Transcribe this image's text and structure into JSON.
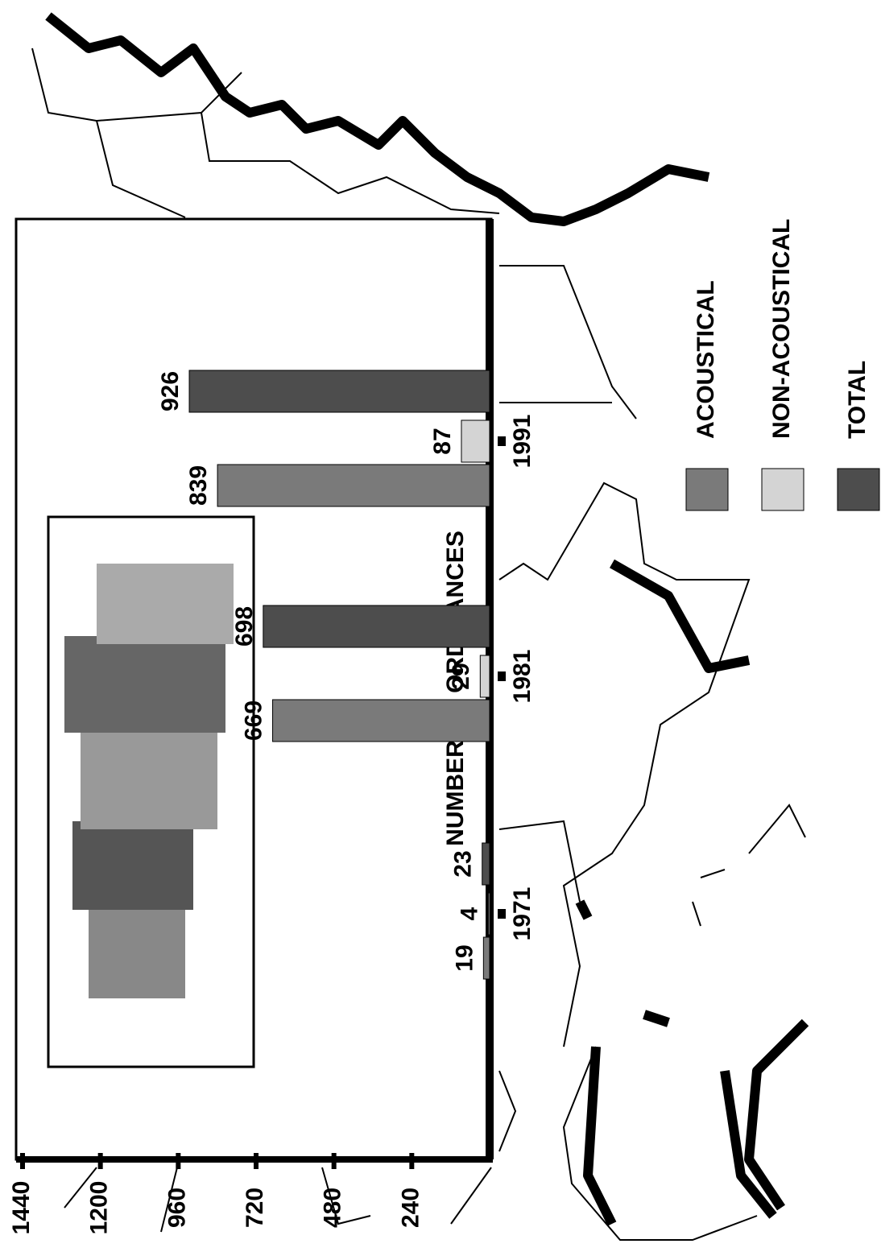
{
  "chart_data": {
    "type": "bar",
    "title": "NUMBER OF ORDINANCES",
    "categories": [
      "1971",
      "1981",
      "1991"
    ],
    "series": [
      {
        "name": "ACOUSTICAL",
        "color": "#7a7a7a",
        "values": [
          19,
          669,
          839
        ]
      },
      {
        "name": "NON-ACOUSTICAL",
        "color": "#d4d4d4",
        "values": [
          4,
          29,
          87
        ]
      },
      {
        "name": "TOTAL",
        "color": "#4d4d4d",
        "values": [
          23,
          698,
          926
        ]
      }
    ],
    "ylim": [
      0,
      1440
    ],
    "yticks": [
      240,
      480,
      720,
      960,
      1200,
      1440
    ]
  }
}
